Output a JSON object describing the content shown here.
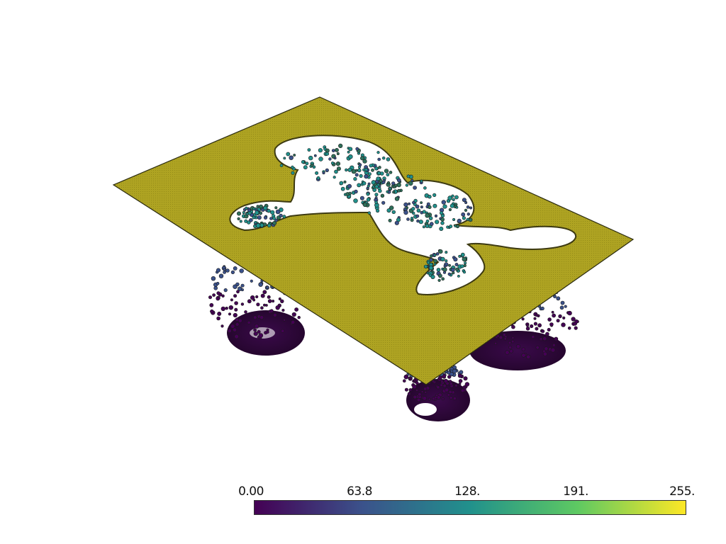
{
  "scene": {
    "description_icon": "3d-volume-render",
    "plane_color": "#a89e1a",
    "plane_edge_color": "#2a2a10",
    "hole_edge_color": "#3d3a12"
  },
  "colorbar": {
    "colormap": "viridis",
    "min": 0,
    "max": 255,
    "stops": [
      "#440154",
      "#3b528b",
      "#21918c",
      "#5ec962",
      "#fde725"
    ],
    "tick_labels": [
      "0.00",
      "63.8",
      "128.",
      "191.",
      "255."
    ]
  }
}
